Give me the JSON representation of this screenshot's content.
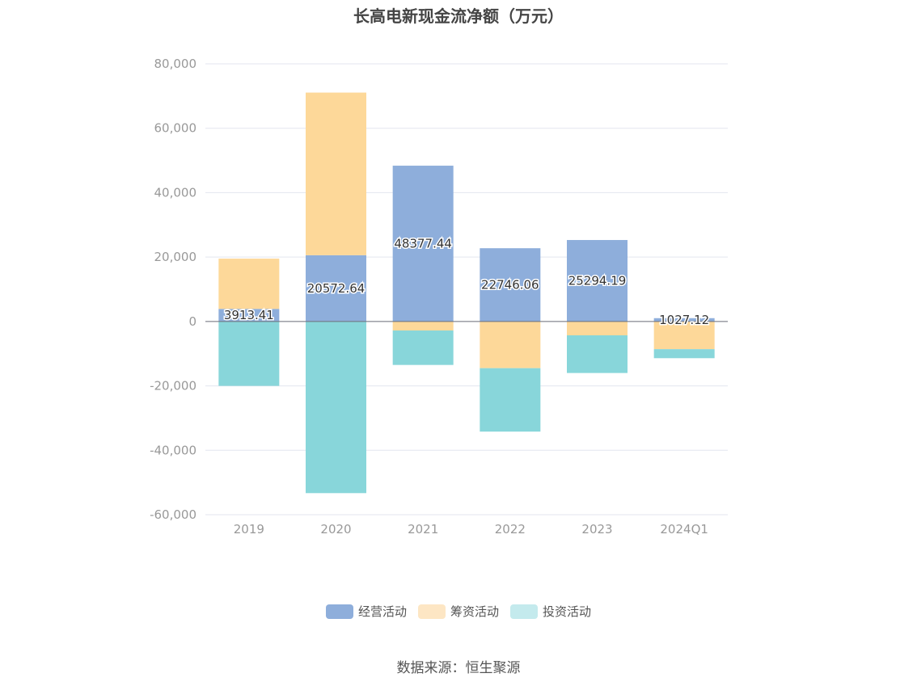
{
  "title": "长高电新现金流净额（万元）",
  "source": "数据来源：恒生聚源",
  "colors": {
    "经营活动": "#8eaedb",
    "筹资活动": "#fdd899",
    "投资活动": "#88d6da",
    "grid": "#e3e6ef",
    "axis": "#6e7079"
  },
  "legend": [
    {
      "label": "经营活动",
      "color": "#8eaedb"
    },
    {
      "label": "筹资活动",
      "color": "#fde6c4"
    },
    {
      "label": "投资活动",
      "color": "#c4eaed"
    }
  ],
  "chart_data": {
    "type": "bar",
    "stacked": true,
    "title": "长高电新现金流净额（万元）",
    "categories": [
      "2019",
      "2020",
      "2021",
      "2022",
      "2023",
      "2024Q1"
    ],
    "ylim": [
      -60000,
      80000
    ],
    "yticks": [
      80000,
      60000,
      40000,
      20000,
      0,
      -20000,
      -40000,
      -60000
    ],
    "ytick_labels": [
      "80,000",
      "60,000",
      "40,000",
      "20,000",
      "0",
      "-20,000",
      "-40,000",
      "-60,000"
    ],
    "grid": true,
    "legend_position": "bottom",
    "series": [
      {
        "name": "经营活动",
        "values": [
          3913.41,
          20572.64,
          48377.44,
          22746.06,
          25294.19,
          1027.12
        ],
        "labels": [
          "3913.41",
          "20572.64",
          "48377.44",
          "22746.06",
          "25294.19",
          "1027.12"
        ]
      },
      {
        "name": "筹资活动",
        "values": [
          15600,
          50500,
          -2800,
          -14500,
          -4300,
          -8600
        ]
      },
      {
        "name": "投资活动",
        "values": [
          -20000,
          -53300,
          -10700,
          -19700,
          -11700,
          -2800
        ]
      }
    ]
  }
}
